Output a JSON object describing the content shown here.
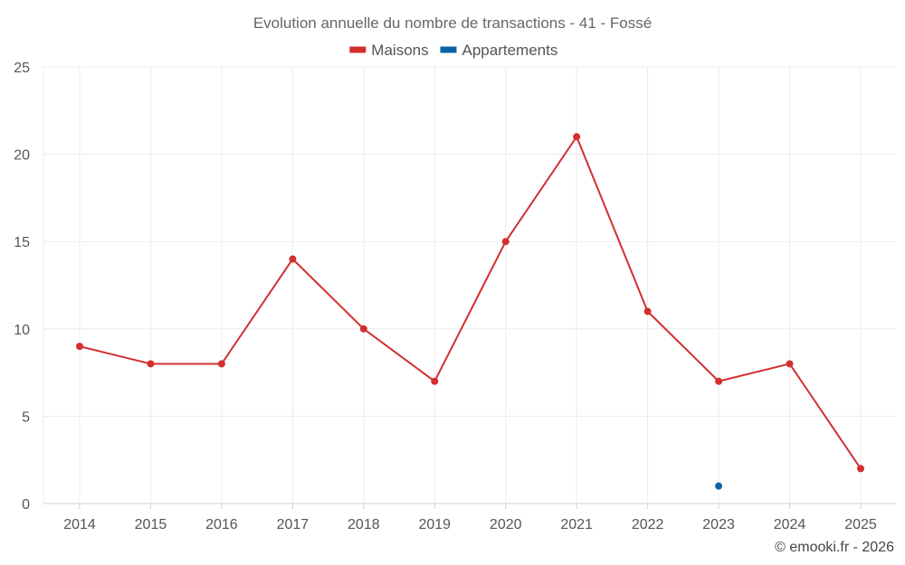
{
  "chart_data": {
    "type": "line",
    "title": "Evolution annuelle du nombre de transactions - 41 - Fossé",
    "xlabel": "",
    "ylabel": "",
    "categories": [
      "2014",
      "2015",
      "2016",
      "2017",
      "2018",
      "2019",
      "2020",
      "2021",
      "2022",
      "2023",
      "2024",
      "2025"
    ],
    "ylim": [
      0,
      25
    ],
    "yticks": [
      "0",
      "5",
      "10",
      "15",
      "20",
      "25"
    ],
    "grid": true,
    "legend_position": "top-center",
    "series": [
      {
        "name": "Maisons",
        "color": "#d32f2f",
        "values": [
          9,
          8,
          8,
          14,
          10,
          7,
          15,
          21,
          11,
          7,
          8,
          2
        ]
      },
      {
        "name": "Appartements",
        "color": "#0b62a4",
        "values": [
          null,
          null,
          null,
          null,
          null,
          null,
          null,
          null,
          null,
          1,
          null,
          null
        ]
      }
    ]
  },
  "credit": "© emooki.fr - 2026"
}
